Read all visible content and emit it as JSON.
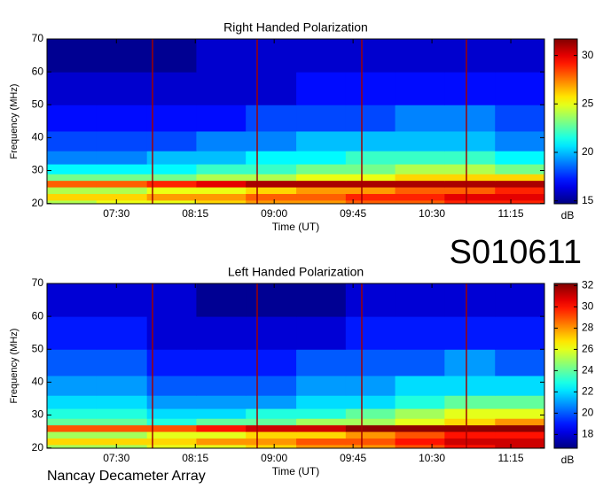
{
  "annotations": {
    "event_id": "S010611",
    "instrument": "Nancay Decameter Array"
  },
  "chart_data": [
    {
      "type": "heatmap",
      "title": "Right Handed Polarization",
      "xlabel": "Time (UT)",
      "ylabel": "Frequency (MHz)",
      "colormap": "jet",
      "xlim": [
        6.84,
        11.57
      ],
      "xticks": [
        {
          "value": 7.5,
          "label": "07:30"
        },
        {
          "value": 8.25,
          "label": "08:15"
        },
        {
          "value": 9,
          "label": "09:00"
        },
        {
          "value": 9.75,
          "label": "09:45"
        },
        {
          "value": 10.5,
          "label": "10:30"
        },
        {
          "value": 11.25,
          "label": "11:15"
        }
      ],
      "ylim": [
        19.9,
        70
      ],
      "yticks": [
        20,
        30,
        40,
        50,
        60,
        70
      ],
      "x_bins": [
        6.84,
        7.31,
        7.79,
        8.26,
        8.73,
        9.21,
        9.68,
        10.15,
        10.62,
        11.1,
        11.57
      ],
      "y_bins": [
        19.9,
        21,
        23,
        25,
        27,
        29,
        32,
        36,
        42,
        50,
        60,
        70
      ],
      "values": [
        [
          24,
          25,
          25,
          26,
          27,
          27,
          28,
          28,
          29,
          29
        ],
        [
          26,
          26,
          27,
          27,
          28,
          28,
          29,
          29,
          30,
          30
        ],
        [
          24,
          24,
          25,
          25,
          26,
          27,
          27,
          28,
          28,
          29
        ],
        [
          28,
          28,
          29,
          30,
          31,
          31,
          31,
          31,
          31,
          31
        ],
        [
          23,
          23,
          23,
          24,
          24,
          25,
          25,
          26,
          26,
          26
        ],
        [
          21,
          21,
          21,
          22,
          22,
          23,
          23,
          24,
          24,
          23
        ],
        [
          19,
          19,
          20,
          20,
          21,
          21,
          22,
          22,
          22,
          21
        ],
        [
          18,
          18,
          18,
          19,
          19,
          20,
          20,
          20,
          20,
          19
        ],
        [
          17,
          17,
          17,
          17,
          18,
          18,
          18,
          19,
          19,
          18
        ],
        [
          16,
          16,
          16,
          16,
          16,
          17,
          17,
          17,
          17,
          17
        ],
        [
          15,
          15,
          15,
          16,
          16,
          16,
          16,
          16,
          16,
          16
        ]
      ],
      "colorbar": {
        "label": "dB",
        "lim": [
          14.7,
          31.7
        ],
        "ticks": [
          15,
          20,
          25,
          30
        ]
      }
    },
    {
      "type": "heatmap",
      "title": "Left Handed Polarization",
      "xlabel": "Time (UT)",
      "ylabel": "Frequency (MHz)",
      "colormap": "jet",
      "xlim": [
        6.84,
        11.57
      ],
      "xticks": [
        {
          "value": 7.5,
          "label": "07:30"
        },
        {
          "value": 8.25,
          "label": "08:15"
        },
        {
          "value": 9,
          "label": "09:00"
        },
        {
          "value": 9.75,
          "label": "09:45"
        },
        {
          "value": 10.5,
          "label": "10:30"
        },
        {
          "value": 11.25,
          "label": "11:15"
        }
      ],
      "ylim": [
        19.9,
        70
      ],
      "yticks": [
        20,
        30,
        40,
        50,
        60,
        70
      ],
      "x_bins": [
        6.84,
        7.31,
        7.79,
        8.26,
        8.73,
        9.21,
        9.68,
        10.15,
        10.62,
        11.1,
        11.57
      ],
      "y_bins": [
        19.9,
        21,
        23,
        25,
        27,
        29,
        32,
        36,
        42,
        50,
        60,
        70
      ],
      "values": [
        [
          25,
          25,
          26,
          26,
          27,
          28,
          28,
          29,
          30,
          31
        ],
        [
          27,
          27,
          27,
          28,
          28,
          29,
          29,
          30,
          31,
          31
        ],
        [
          25,
          25,
          26,
          26,
          27,
          27,
          28,
          29,
          30,
          30
        ],
        [
          29,
          29,
          29,
          30,
          31,
          31,
          32,
          32,
          32,
          32
        ],
        [
          24,
          24,
          23,
          24,
          24,
          25,
          25,
          26,
          27,
          28
        ],
        [
          23,
          23,
          22,
          22,
          23,
          23,
          24,
          25,
          26,
          26
        ],
        [
          22,
          22,
          21,
          21,
          21,
          22,
          22,
          23,
          24,
          24
        ],
        [
          21,
          21,
          20,
          20,
          20,
          21,
          21,
          22,
          22,
          22
        ],
        [
          20,
          20,
          19,
          19,
          19,
          20,
          20,
          20,
          21,
          20
        ],
        [
          19,
          19,
          18,
          18,
          18,
          18,
          19,
          19,
          19,
          19
        ],
        [
          18,
          18,
          18,
          17,
          17,
          17,
          18,
          18,
          18,
          18
        ]
      ],
      "colorbar": {
        "label": "dB",
        "lim": [
          16.7,
          32.2
        ],
        "ticks": [
          18,
          20,
          22,
          24,
          26,
          28,
          30,
          32
        ]
      }
    }
  ]
}
